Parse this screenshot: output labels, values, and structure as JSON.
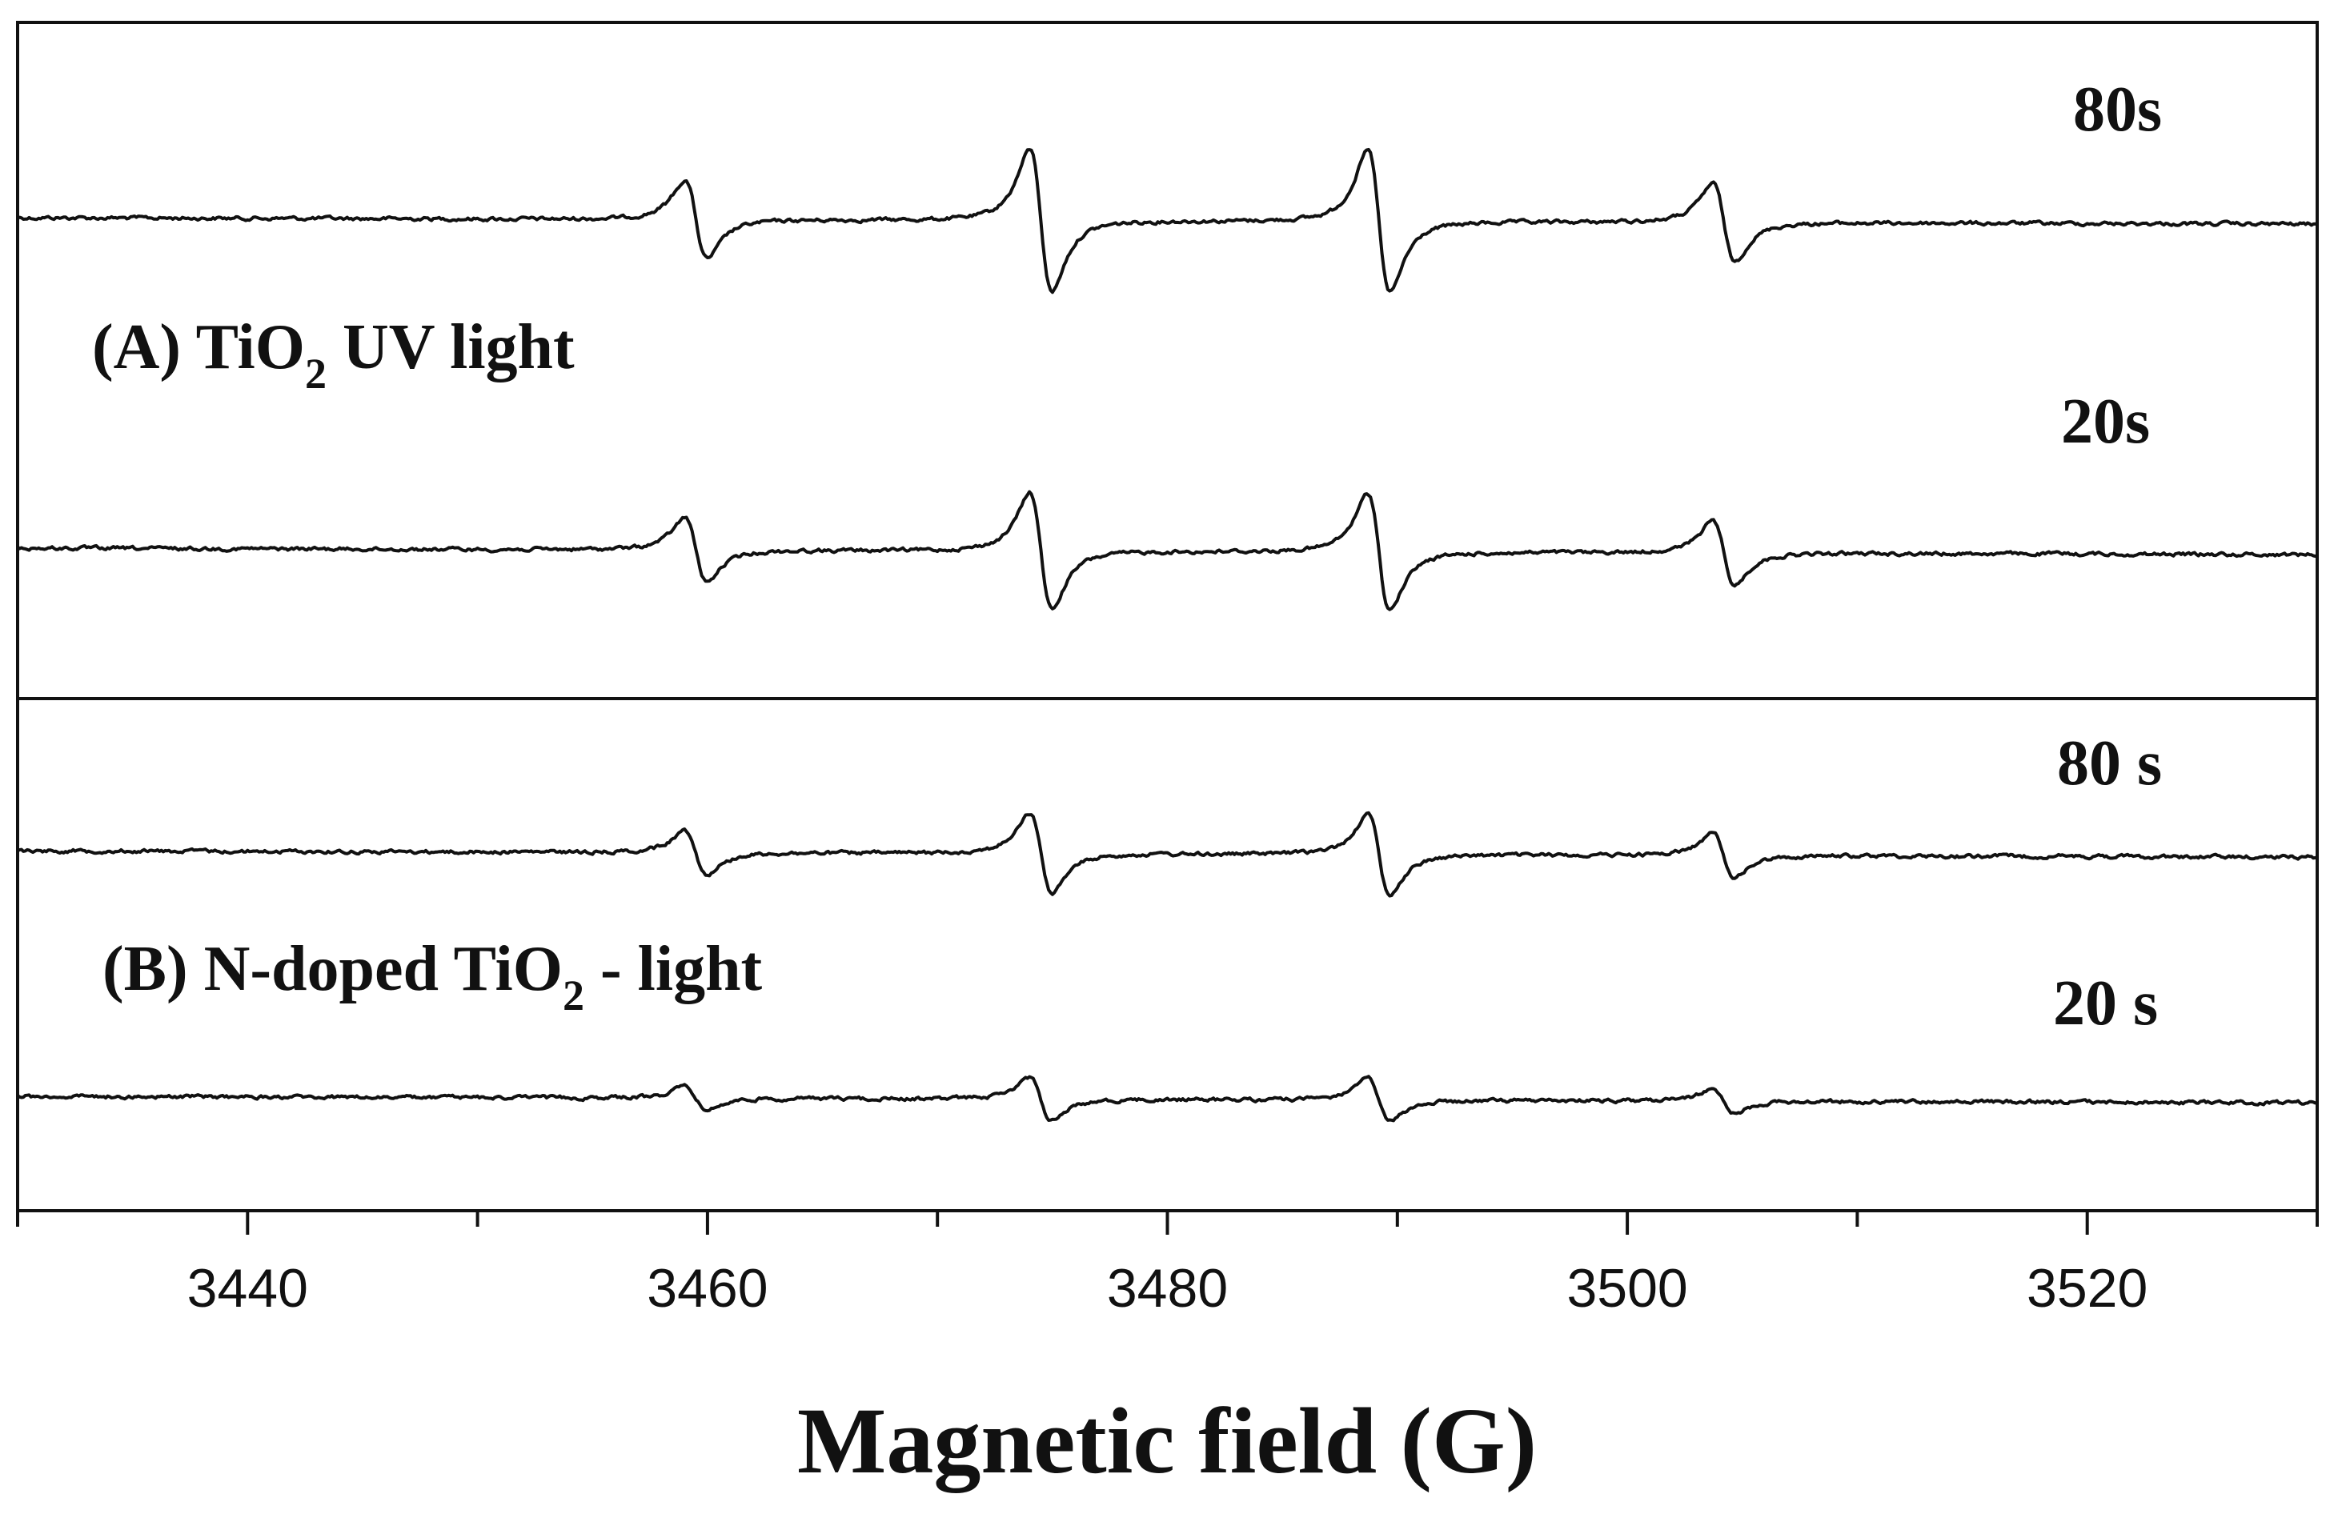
{
  "chart_data": {
    "type": "line",
    "xlabel": "Magnetic field (G)",
    "x_ticks": [
      3440,
      3460,
      3480,
      3500,
      3520
    ],
    "x_minor_ticks": [
      3430,
      3450,
      3470,
      3490,
      3510,
      3530
    ],
    "xlim": [
      3430,
      3530
    ],
    "grid": false,
    "legend": "none",
    "panels": [
      {
        "label_main": "(A) TiO",
        "label_sub": "2",
        "label_rest": " UV light",
        "series": [
          {
            "name": "80s",
            "baseline": 0,
            "amplitude": 1.0
          },
          {
            "name": "20s",
            "baseline": 0,
            "amplitude": 0.82
          }
        ]
      },
      {
        "label_main": "(B) N-doped TiO",
        "label_sub": "2",
        "label_rest": " - light",
        "series": [
          {
            "name": "80 s",
            "baseline": 0,
            "amplitude": 0.56
          },
          {
            "name": "20 s",
            "baseline": 0,
            "amplitude": 0.3
          }
        ]
      }
    ],
    "peaks": [
      {
        "x": 3459.5,
        "relative_intensity": 0.55
      },
      {
        "x": 3474.5,
        "relative_intensity": 1.0
      },
      {
        "x": 3489.2,
        "relative_intensity": 1.0
      },
      {
        "x": 3504.2,
        "relative_intensity": 0.55
      }
    ]
  },
  "colors": {
    "line": "#111111",
    "frame": "#111111",
    "background": "#ffffff"
  }
}
